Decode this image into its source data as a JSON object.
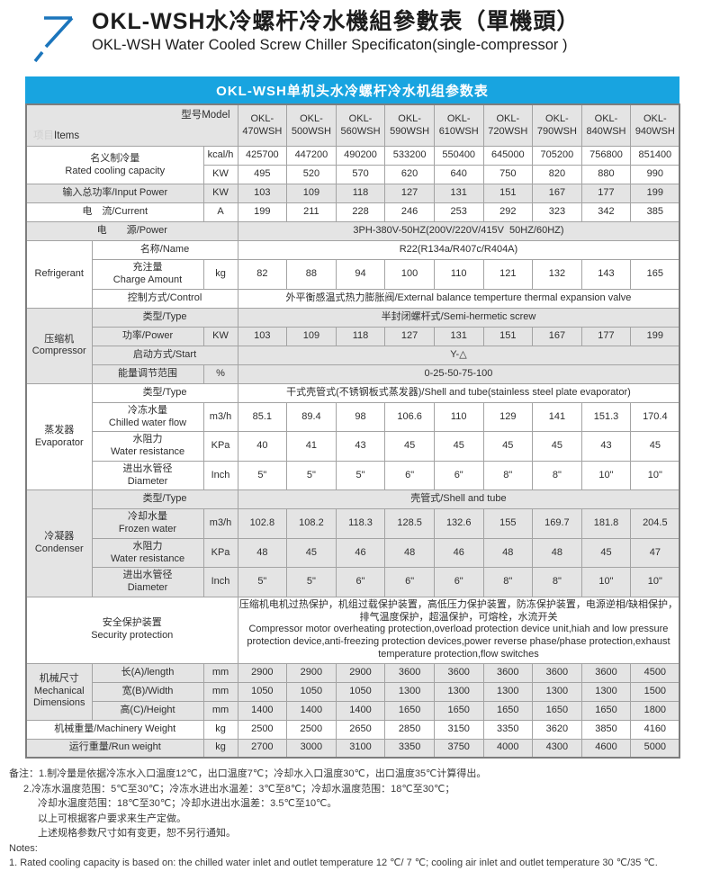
{
  "header": {
    "title_zh": "OKL-WSH水冷螺杆冷水機組參數表（單機頭）",
    "title_en": "OKL-WSH Water Cooled Screw Chiller Specificaton(single-compressor )",
    "logo_icon": "up-right-arrow-icon"
  },
  "banner": {
    "text": "OKL-WSH单机头水冷螺杆冷水机组参数表"
  },
  "colors": {
    "banner_blue": "#18a4e0",
    "logo_blue": "#1b75bc",
    "row_gray": "#e4e4e4"
  },
  "table": {
    "corner": {
      "items_zh": "项目",
      "items_en": "Items",
      "model_label": "型号Model"
    },
    "models": [
      "OKL-\n470WSH",
      "OKL-\n500WSH",
      "OKL-\n560WSH",
      "OKL-\n590WSH",
      "OKL-\n610WSH",
      "OKL-\n720WSH",
      "OKL-\n790WSH",
      "OKL-\n840WSH",
      "OKL-\n940WSH"
    ],
    "rows": [
      {
        "bg": "white",
        "label": {
          "text": "名义制冷量\nRated cooling capacity",
          "colspan": 2,
          "rowspan": 2
        },
        "unit": "kcal/h",
        "values": [
          "425700",
          "447200",
          "490200",
          "533200",
          "550400",
          "645000",
          "705200",
          "756800",
          "851400"
        ]
      },
      {
        "bg": "white",
        "unit": "KW",
        "values": [
          "495",
          "520",
          "570",
          "620",
          "640",
          "750",
          "820",
          "880",
          "990"
        ]
      },
      {
        "bg": "gray",
        "label": {
          "text": "输入总功率/Input Power",
          "colspan": 2
        },
        "unit": "KW",
        "values": [
          "103",
          "109",
          "118",
          "127",
          "131",
          "151",
          "167",
          "177",
          "199"
        ]
      },
      {
        "bg": "white",
        "label": {
          "text": "电　流/Current",
          "colspan": 2
        },
        "unit": "A",
        "values": [
          "199",
          "211",
          "228",
          "246",
          "253",
          "292",
          "323",
          "342",
          "385"
        ]
      },
      {
        "bg": "gray",
        "label": {
          "text": "电　　源/Power",
          "colspan": 3
        },
        "value_span": "3PH-380V-50HZ(200V/220V/415V  50HZ/60HZ)"
      },
      {
        "bg": "white",
        "group": {
          "text": "Refrigerant",
          "rowspan": 3
        },
        "label": {
          "text": "名称/Name",
          "colspan": 2
        },
        "value_span": "R22(R134a/R407c/R404A)"
      },
      {
        "bg": "white",
        "label": {
          "text": "充注量\nCharge Amount",
          "colspan": 1
        },
        "unit": "kg",
        "values": [
          "82",
          "88",
          "94",
          "100",
          "110",
          "121",
          "132",
          "143",
          "165"
        ]
      },
      {
        "bg": "white",
        "label": {
          "text": "控制方式/Control",
          "colspan": 2
        },
        "value_span": "外平衡感温式热力膨胀阀/External balance temperture thermal expansion valve"
      },
      {
        "bg": "gray",
        "group": {
          "text": "压缩机\nCompressor",
          "rowspan": 4
        },
        "label": {
          "text": "类型/Type",
          "colspan": 2
        },
        "value_span": "半封闭螺杆式/Semi-hermetic screw"
      },
      {
        "bg": "gray",
        "label": {
          "text": "功率/Power",
          "colspan": 1
        },
        "unit": "KW",
        "values": [
          "103",
          "109",
          "118",
          "127",
          "131",
          "151",
          "167",
          "177",
          "199"
        ]
      },
      {
        "bg": "gray",
        "label": {
          "text": "启动方式/Start",
          "colspan": 2
        },
        "value_span": "Y-△"
      },
      {
        "bg": "gray",
        "label": {
          "text": "能量调节范围",
          "colspan": 1
        },
        "unit": "%",
        "value_span": "0-25-50-75-100"
      },
      {
        "bg": "white",
        "group": {
          "text": "蒸发器\nEvaporator",
          "rowspan": 4
        },
        "label": {
          "text": "类型/Type",
          "colspan": 2
        },
        "value_span": "干式壳管式(不锈钢板式蒸发器)/Shell and tube(stainless steel plate evaporator)"
      },
      {
        "bg": "white",
        "label": {
          "text": "冷冻水量\nChilled water flow",
          "colspan": 1
        },
        "unit": "m3/h",
        "values": [
          "85.1",
          "89.4",
          "98",
          "106.6",
          "110",
          "129",
          "141",
          "151.3",
          "170.4"
        ]
      },
      {
        "bg": "white",
        "label": {
          "text": "水阻力\nWater resistance",
          "colspan": 1
        },
        "unit": "KPa",
        "values": [
          "40",
          "41",
          "43",
          "45",
          "45",
          "45",
          "45",
          "43",
          "45"
        ]
      },
      {
        "bg": "white",
        "label": {
          "text": "进出水管径\nDiameter",
          "colspan": 1
        },
        "unit": "Inch",
        "values": [
          "5\"",
          "5\"",
          "5\"",
          "6\"",
          "6\"",
          "8\"",
          "8\"",
          "10\"",
          "10\""
        ]
      },
      {
        "bg": "gray",
        "group": {
          "text": "冷凝器\nCondenser",
          "rowspan": 4
        },
        "label": {
          "text": "类型/Type",
          "colspan": 2
        },
        "value_span": "壳管式/Shell and tube"
      },
      {
        "bg": "gray",
        "label": {
          "text": "冷却水量\nFrozen water",
          "colspan": 1
        },
        "unit": "m3/h",
        "values": [
          "102.8",
          "108.2",
          "118.3",
          "128.5",
          "132.6",
          "155",
          "169.7",
          "181.8",
          "204.5"
        ]
      },
      {
        "bg": "gray",
        "label": {
          "text": "水阻力\nWater resistance",
          "colspan": 1
        },
        "unit": "KPa",
        "values": [
          "48",
          "45",
          "46",
          "48",
          "46",
          "48",
          "48",
          "45",
          "47"
        ]
      },
      {
        "bg": "gray",
        "label": {
          "text": "进出水管径\nDiameter",
          "colspan": 1
        },
        "unit": "Inch",
        "values": [
          "5\"",
          "5\"",
          "6\"",
          "6\"",
          "6\"",
          "8\"",
          "8\"",
          "10\"",
          "10\""
        ]
      },
      {
        "bg": "white",
        "label": {
          "text": "安全保护装置\nSecurity protection",
          "colspan": 3
        },
        "value_span": "压缩机电机过热保护，机组过载保护装置，高低压力保护装置，防冻保护装置，电源逆相/缺相保护，排气温度保护，超温保护，可熔栓，水流开关\nCompressor motor overheating protection,overload protection device unit,hiah and low pressure protection device,anti-freezing protection devices,power reverse phase/phase protection,exhaust temperature protection,flow switches",
        "value_align": "left"
      },
      {
        "bg": "gray",
        "group": {
          "text": "机械尺寸\nMechanical\nDimensions",
          "rowspan": 3
        },
        "label": {
          "text": "长(A)/length",
          "colspan": 1
        },
        "unit": "mm",
        "values": [
          "2900",
          "2900",
          "2900",
          "3600",
          "3600",
          "3600",
          "3600",
          "3600",
          "4500"
        ]
      },
      {
        "bg": "gray",
        "label": {
          "text": "宽(B)/Width",
          "colspan": 1
        },
        "unit": "mm",
        "values": [
          "1050",
          "1050",
          "1050",
          "1300",
          "1300",
          "1300",
          "1300",
          "1300",
          "1500"
        ]
      },
      {
        "bg": "gray",
        "label": {
          "text": "高(C)/Height",
          "colspan": 1
        },
        "unit": "mm",
        "values": [
          "1400",
          "1400",
          "1400",
          "1650",
          "1650",
          "1650",
          "1650",
          "1650",
          "1800"
        ]
      },
      {
        "bg": "white",
        "label": {
          "text": "机械重量/Machinery Weight",
          "colspan": 2
        },
        "unit": "kg",
        "values": [
          "2500",
          "2500",
          "2650",
          "2850",
          "3150",
          "3350",
          "3620",
          "3850",
          "4160"
        ]
      },
      {
        "bg": "gray",
        "label": {
          "text": "运行重量/Run weight",
          "colspan": 2
        },
        "unit": "kg",
        "values": [
          "2700",
          "3000",
          "3100",
          "3350",
          "3750",
          "4000",
          "4300",
          "4600",
          "5000"
        ]
      }
    ]
  },
  "notes": [
    {
      "indent": 0,
      "text": "备注：1.制冷量是依据冷冻水入口温度12℃，出口温度7℃；冷却水入口温度30℃，出口温度35℃计算得出。"
    },
    {
      "indent": 1,
      "text": "2.冷冻水温度范围：5℃至30℃；冷冻水进出水温差：3℃至8℃；冷却水温度范围：18℃至30℃；"
    },
    {
      "indent": 2,
      "text": "冷却水温度范围：18℃至30℃；冷却水进出水温差：3.5℃至10℃。"
    },
    {
      "indent": 2,
      "text": "以上可根据客户要求来生产定做。"
    },
    {
      "indent": 2,
      "text": "上述规格参数尺寸如有变更，恕不另行通知。"
    },
    {
      "indent": 0,
      "text": "Notes:"
    },
    {
      "indent": 0,
      "text": "1. Rated cooling capacity is based on: the chilled water inlet and outlet temperature 12 ℃/ 7 ℃; cooling air inlet and outlet temperature 30 ℃/35 ℃."
    }
  ]
}
